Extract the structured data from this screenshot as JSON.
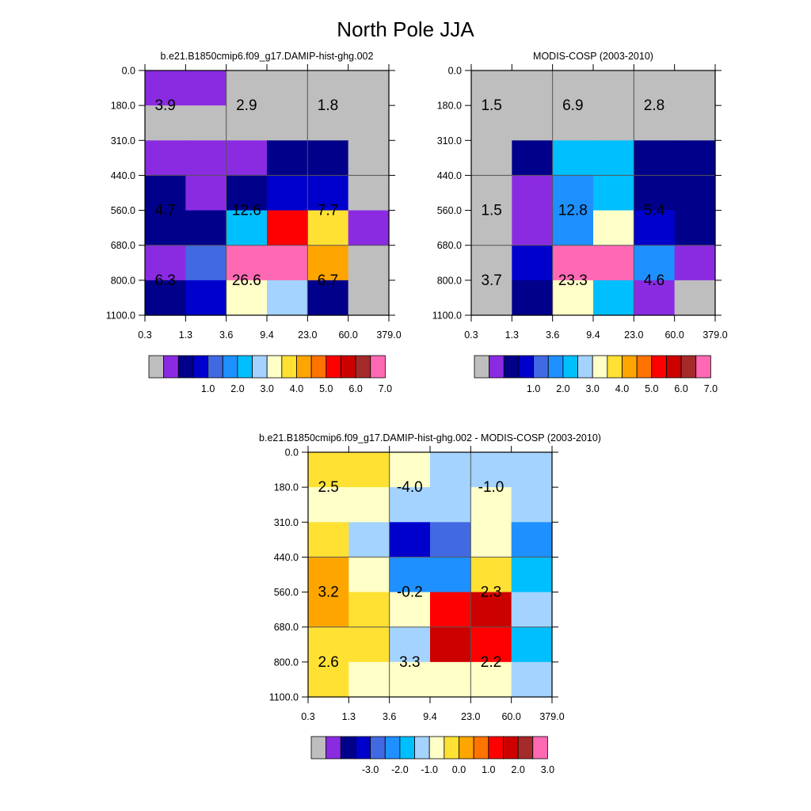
{
  "page": {
    "title": "North Pole JJA"
  },
  "colors": {
    "palette": [
      "#bebebe",
      "#8a2be2",
      "#00008b",
      "#0000cd",
      "#4169e1",
      "#1e90ff",
      "#00bfff",
      "#a4d3ff",
      "#ffffc8",
      "#ffe133",
      "#ffa500",
      "#ff7300",
      "#ff0000",
      "#cd0000",
      "#a52a2a",
      "#ff69b4"
    ]
  },
  "chart_data": [
    {
      "type": "heatmap",
      "title": "b.e21.B1850cmip6.f09_g17.DAMIP-hist-ghg.002",
      "x_tick_labels": [
        "0.3",
        "1.3",
        "3.6",
        "9.4",
        "23.0",
        "60.0",
        "379.0"
      ],
      "y_tick_labels": [
        "0.0",
        "180.0",
        "310.0",
        "440.0",
        "560.0",
        "680.0",
        "800.0",
        "1100.0"
      ],
      "cells_top_to_bottom": [
        [
          1,
          1,
          0,
          0,
          0,
          0
        ],
        [
          0,
          0,
          0,
          0,
          0,
          0
        ],
        [
          1,
          1,
          1,
          2,
          2,
          0
        ],
        [
          2,
          1,
          2,
          3,
          3,
          0
        ],
        [
          2,
          2,
          6,
          12,
          9,
          1
        ],
        [
          1,
          4,
          15,
          15,
          10,
          0
        ],
        [
          2,
          3,
          8,
          7,
          2,
          0
        ]
      ],
      "value_labels": [
        {
          "text": "3.9",
          "col": 0.5,
          "row": 1
        },
        {
          "text": "2.9",
          "col": 2.5,
          "row": 1
        },
        {
          "text": "1.8",
          "col": 4.5,
          "row": 1
        },
        {
          "text": "4.7",
          "col": 0.5,
          "row": 4
        },
        {
          "text": "12.6",
          "col": 2.5,
          "row": 4
        },
        {
          "text": "7.7",
          "col": 4.5,
          "row": 4
        },
        {
          "text": "6.3",
          "col": 0.5,
          "row": 6
        },
        {
          "text": "26.6",
          "col": 2.5,
          "row": 6
        },
        {
          "text": "6.7",
          "col": 4.5,
          "row": 6
        }
      ],
      "colorbar_labels": [
        "1.0",
        "2.0",
        "3.0",
        "4.0",
        "5.0",
        "6.0",
        "7.0"
      ],
      "colorbar_colors": [
        0,
        1,
        2,
        3,
        4,
        5,
        6,
        7,
        8,
        9,
        10,
        11,
        12,
        13,
        14,
        15
      ]
    },
    {
      "type": "heatmap",
      "title": "MODIS-COSP (2003-2010)",
      "x_tick_labels": [
        "0.3",
        "1.3",
        "3.6",
        "9.4",
        "23.0",
        "60.0",
        "379.0"
      ],
      "y_tick_labels": [
        "0.0",
        "180.0",
        "310.0",
        "440.0",
        "560.0",
        "680.0",
        "800.0",
        "1100.0"
      ],
      "cells_top_to_bottom": [
        [
          0,
          0,
          0,
          0,
          0,
          0
        ],
        [
          0,
          0,
          0,
          0,
          0,
          0
        ],
        [
          0,
          2,
          6,
          6,
          2,
          2
        ],
        [
          0,
          1,
          5,
          6,
          2,
          2
        ],
        [
          0,
          1,
          5,
          8,
          3,
          2
        ],
        [
          0,
          3,
          15,
          15,
          5,
          1
        ],
        [
          0,
          2,
          8,
          6,
          1,
          0
        ]
      ],
      "value_labels": [
        {
          "text": "1.5",
          "col": 0.5,
          "row": 1
        },
        {
          "text": "6.9",
          "col": 2.5,
          "row": 1
        },
        {
          "text": "2.8",
          "col": 4.5,
          "row": 1
        },
        {
          "text": "1.5",
          "col": 0.5,
          "row": 4
        },
        {
          "text": "12.8",
          "col": 2.5,
          "row": 4
        },
        {
          "text": "5.4",
          "col": 4.5,
          "row": 4
        },
        {
          "text": "3.7",
          "col": 0.5,
          "row": 6
        },
        {
          "text": "23.3",
          "col": 2.5,
          "row": 6
        },
        {
          "text": "4.6",
          "col": 4.5,
          "row": 6
        }
      ],
      "colorbar_labels": [
        "1.0",
        "2.0",
        "3.0",
        "4.0",
        "5.0",
        "6.0",
        "7.0"
      ],
      "colorbar_colors": [
        0,
        1,
        2,
        3,
        4,
        5,
        6,
        7,
        8,
        9,
        10,
        11,
        12,
        13,
        14,
        15
      ]
    },
    {
      "type": "heatmap",
      "title": "b.e21.B1850cmip6.f09_g17.DAMIP-hist-ghg.002 - MODIS-COSP (2003-2010)",
      "x_tick_labels": [
        "0.3",
        "1.3",
        "3.6",
        "9.4",
        "23.0",
        "60.0",
        "379.0"
      ],
      "y_tick_labels": [
        "0.0",
        "180.0",
        "310.0",
        "440.0",
        "560.0",
        "680.0",
        "800.0",
        "1100.0"
      ],
      "cells_top_to_bottom": [
        [
          9,
          9,
          8,
          7,
          7,
          7
        ],
        [
          8,
          8,
          7,
          7,
          8,
          7
        ],
        [
          9,
          7,
          3,
          4,
          8,
          5
        ],
        [
          10,
          8,
          5,
          5,
          9,
          6
        ],
        [
          10,
          9,
          8,
          12,
          13,
          7
        ],
        [
          9,
          9,
          7,
          13,
          12,
          6
        ],
        [
          9,
          8,
          8,
          8,
          8,
          7
        ]
      ],
      "value_labels": [
        {
          "text": "2.5",
          "col": 0.5,
          "row": 1
        },
        {
          "text": "-4.0",
          "col": 2.5,
          "row": 1
        },
        {
          "text": "-1.0",
          "col": 4.5,
          "row": 1
        },
        {
          "text": "3.2",
          "col": 0.5,
          "row": 4
        },
        {
          "text": "-0.2",
          "col": 2.5,
          "row": 4
        },
        {
          "text": "2.3",
          "col": 4.5,
          "row": 4
        },
        {
          "text": "2.6",
          "col": 0.5,
          "row": 6
        },
        {
          "text": "3.3",
          "col": 2.5,
          "row": 6
        },
        {
          "text": "2.2",
          "col": 4.5,
          "row": 6
        }
      ],
      "colorbar_labels": [
        "-3.0",
        "-2.0",
        "-1.0",
        "0.0",
        "1.0",
        "2.0",
        "3.0"
      ],
      "colorbar_colors": [
        0,
        1,
        2,
        3,
        4,
        5,
        6,
        7,
        8,
        9,
        10,
        11,
        12,
        13,
        14,
        15
      ]
    }
  ]
}
